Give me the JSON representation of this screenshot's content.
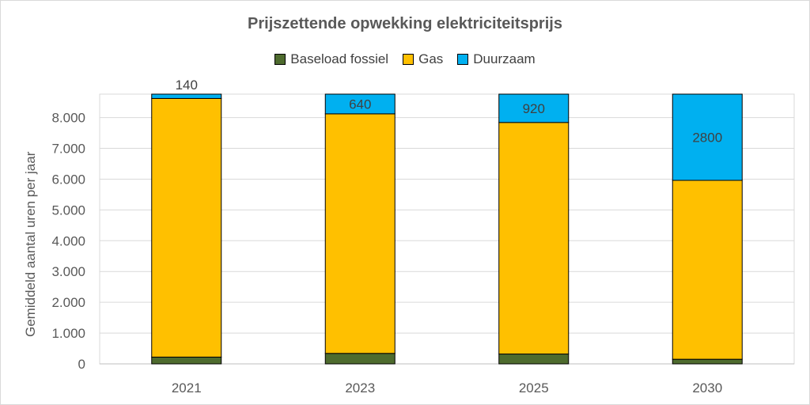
{
  "chart_data": {
    "type": "bar",
    "stacked": true,
    "title": "Prijszettende opwekking elektriciteitsprijs",
    "ylabel": "Gemiddeld aantal uren per jaar",
    "xlabel": "",
    "categories": [
      "2021",
      "2023",
      "2025",
      "2030"
    ],
    "ylim": [
      0,
      8760
    ],
    "yticks": [
      0,
      1000,
      2000,
      3000,
      4000,
      5000,
      6000,
      7000,
      8000
    ],
    "ytick_labels": [
      "0",
      "1.000",
      "2.000",
      "3.000",
      "4.000",
      "5.000",
      "6.000",
      "7.000",
      "8.000"
    ],
    "grid": true,
    "legend_position": "top",
    "series": [
      {
        "name": "Baseload fossiel",
        "color": "#4e6b2e",
        "values": [
          220,
          340,
          320,
          150
        ]
      },
      {
        "name": "Gas",
        "color": "#ffc000",
        "values": [
          8400,
          7780,
          7520,
          5810
        ]
      },
      {
        "name": "Duurzaam",
        "color": "#00b0f0",
        "values": [
          140,
          640,
          920,
          2800
        ]
      }
    ],
    "data_labels": {
      "series": "Duurzaam",
      "labels": [
        "140",
        "640",
        "920",
        "2800"
      ]
    }
  }
}
